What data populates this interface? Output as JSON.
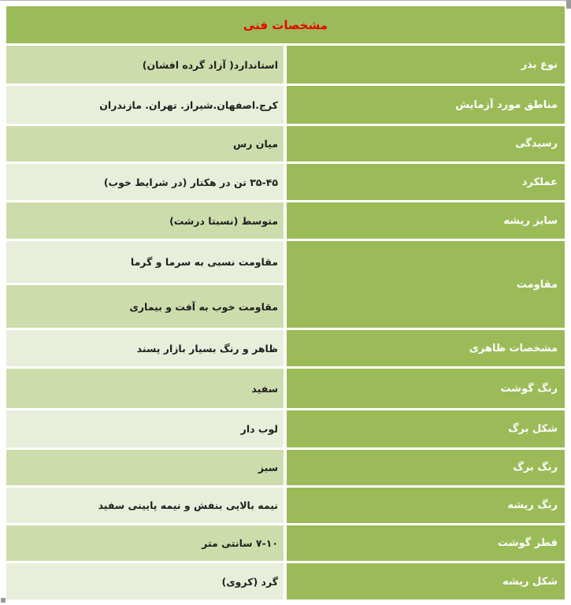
{
  "header": {
    "title": "مشخصات فنی"
  },
  "colors": {
    "green": "#9bbb59",
    "band_dark": "#cddcab",
    "band_light": "#e7eeda",
    "title_red": "#e80000",
    "label_text": "#ffffff",
    "value_text": "#1f1f1f"
  },
  "table": {
    "rows": [
      {
        "label": "نوع بذر",
        "values": [
          "استاندارد( آزاد گرده افشان)"
        ]
      },
      {
        "label": "مناطق مورد آزمایش",
        "values": [
          "کرج.اصفهان.شیراز. تهران. مازندران"
        ]
      },
      {
        "label": "رسیدگی",
        "values": [
          "میان رس"
        ]
      },
      {
        "label": "عملکرد",
        "values": [
          "۳۵-۴۵ تن در هکتار (در شرایط خوب)"
        ]
      },
      {
        "label": "سایز ریشه",
        "values": [
          "متوسط (نسبتا درشت)"
        ]
      },
      {
        "label": "مقاومت",
        "values": [
          "مقاومت نسبی به سرما و گرما",
          "مقاومت خوب به آفت و بیماری"
        ]
      },
      {
        "label": "مشخصات ظاهری",
        "values": [
          "ظاهر و رنگ بسیار بازار پسند"
        ]
      },
      {
        "label": "رنگ گوشت",
        "values": [
          "سفید"
        ]
      },
      {
        "label": "شکل برگ",
        "values": [
          "لوب دار"
        ]
      },
      {
        "label": "رنگ برگ",
        "values": [
          "سبز"
        ]
      },
      {
        "label": "رنگ ریشه",
        "values": [
          "نیمه بالایی بنفش و نیمه پایینی سفید"
        ]
      },
      {
        "label": "قطر گوشت",
        "values": [
          "۷-۱۰ سانتی متر"
        ]
      },
      {
        "label": "شکل ریشه",
        "values": [
          "گرد (کروی)"
        ]
      }
    ]
  }
}
